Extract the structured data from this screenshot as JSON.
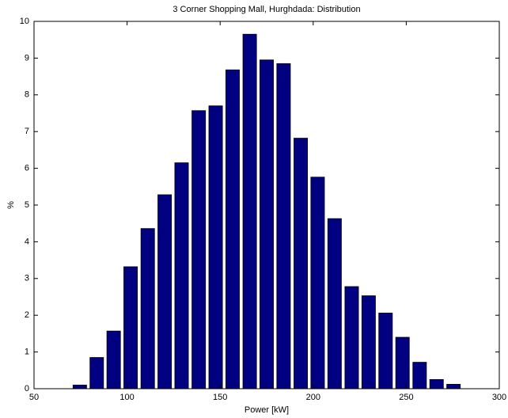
{
  "chart_data": {
    "type": "bar",
    "title": "3 Corner Shopping Mall, Hurghdada: Distribution",
    "x_label": "Power [kW]",
    "y_label": "%",
    "x": [
      74.6,
      83.7,
      92.8,
      101.9,
      111.1,
      120.2,
      129.3,
      138.5,
      147.6,
      156.7,
      165.9,
      175.0,
      184.1,
      193.3,
      202.4,
      211.5,
      220.7,
      229.8,
      238.9,
      248.0,
      257.2,
      266.3,
      275.4
    ],
    "values": [
      0.1,
      0.85,
      1.57,
      3.32,
      4.36,
      5.28,
      6.15,
      7.57,
      7.7,
      8.68,
      9.65,
      8.95,
      8.85,
      6.82,
      5.76,
      4.63,
      2.78,
      2.53,
      2.06,
      1.4,
      0.72,
      0.25,
      0.12
    ],
    "color": "#000080",
    "xlim": [
      50,
      300
    ],
    "xticks": [
      50,
      100,
      150,
      200,
      250,
      300
    ],
    "ylim": [
      0,
      10
    ],
    "yticks": [
      0,
      1,
      2,
      3,
      4,
      5,
      6,
      7,
      8,
      9,
      10
    ],
    "grid": false
  }
}
